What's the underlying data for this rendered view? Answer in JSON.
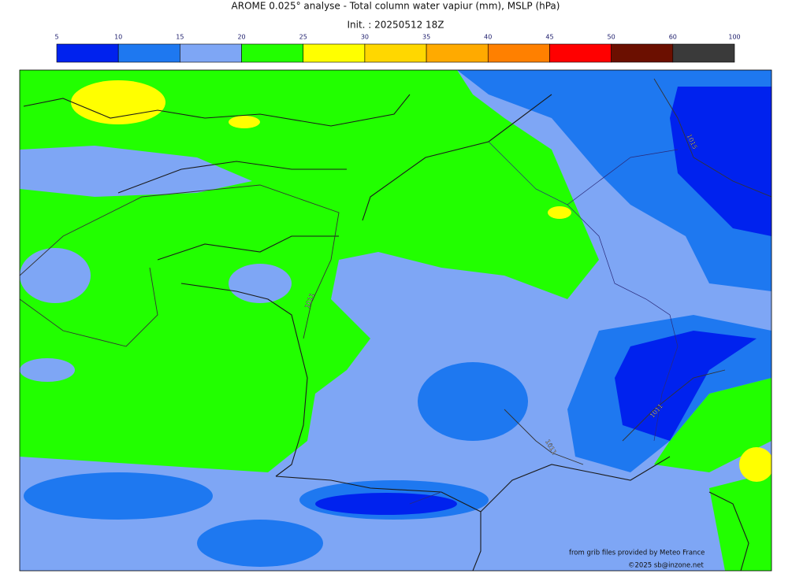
{
  "header": {
    "title": "AROME 0.025° analyse - Total column water vapiur (mm), MSLP (hPa)",
    "init": "Init. : 20250512 18Z"
  },
  "colorbar": {
    "levels": [
      5,
      10,
      15,
      20,
      25,
      30,
      35,
      40,
      45,
      50,
      60,
      100
    ],
    "colors": [
      "#0022ee",
      "#1e78f0",
      "#7ea6f5",
      "#22ff00",
      "#ffff00",
      "#ffd700",
      "#ffaa00",
      "#ff8000",
      "#ff0000",
      "#6b0f00",
      "#3a3a3a"
    ]
  },
  "isobar_labels": [
    "1015",
    "1011",
    "1011",
    "1011"
  ],
  "credits": [
    "from grib files provided by Meteo France",
    "©2025 sb@inzone.net"
  ]
}
